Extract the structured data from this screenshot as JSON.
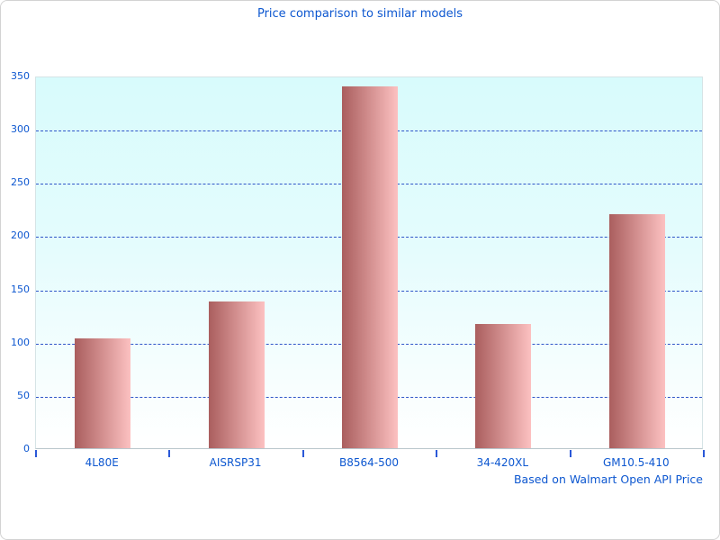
{
  "title": "Price comparison to similar models",
  "caption": "Based on Walmart Open API Price",
  "colors": {
    "text_blue": "#0d57d0",
    "gridline_blue": "#2f55c8",
    "tick_blue": "#2b59d8",
    "bar_gradient_left": "#aa5e5e",
    "bar_gradient_right": "#fcc1c1",
    "plot_bg_top": "#d8fbfc",
    "plot_bg_bottom": "#ffffff",
    "plot_border": "#d6e4e6",
    "card_border": "#d3d3d3"
  },
  "chart_data": {
    "type": "bar",
    "title": "Price comparison to similar models",
    "categories": [
      "4L80E",
      "AISRSP31",
      "B8564-500",
      "34-420XL",
      "GM10.5-410"
    ],
    "values": [
      103,
      138,
      340,
      117,
      220
    ],
    "xlabel": "",
    "ylabel": "",
    "ylim": [
      0,
      350
    ],
    "ytick_step": 50,
    "grid": true,
    "grid_style": "dashed",
    "legend": "none",
    "annotation": "Based on Walmart Open API Price"
  }
}
